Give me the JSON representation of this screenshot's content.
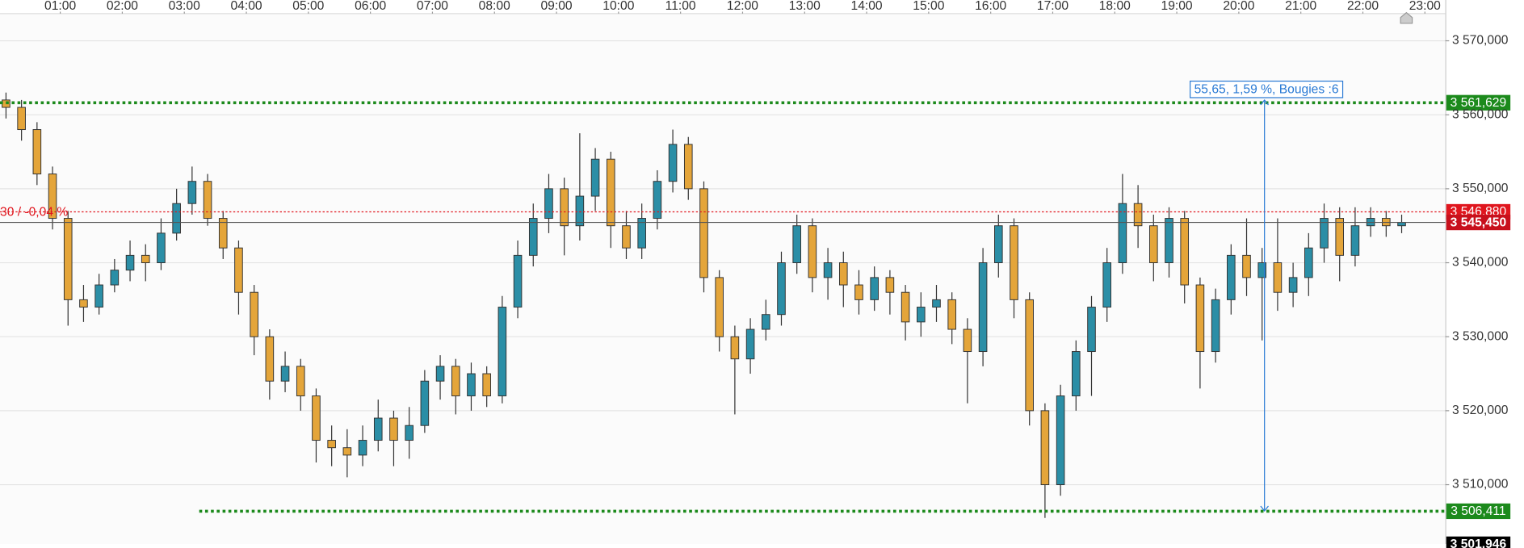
{
  "chart_data": {
    "type": "candlestick",
    "x": [
      "00:00",
      "00:15",
      "00:30",
      "00:45",
      "01:00",
      "01:15",
      "01:30",
      "01:45",
      "02:00",
      "02:15",
      "02:30",
      "02:45",
      "03:00",
      "03:15",
      "03:30",
      "03:45",
      "04:00",
      "04:15",
      "04:30",
      "04:45",
      "05:00",
      "05:15",
      "05:30",
      "05:45",
      "06:00",
      "06:15",
      "06:30",
      "06:45",
      "07:00",
      "07:15",
      "07:30",
      "07:45",
      "08:00",
      "08:15",
      "08:30",
      "08:45",
      "09:00",
      "09:15",
      "09:30",
      "09:45",
      "10:00",
      "10:15",
      "10:30",
      "10:45",
      "11:00",
      "11:15",
      "11:30",
      "11:45",
      "12:00",
      "12:15",
      "12:30",
      "12:45",
      "13:00",
      "13:15",
      "13:30",
      "13:45",
      "14:00",
      "14:15",
      "14:30",
      "14:45",
      "15:00",
      "15:15",
      "15:30",
      "15:45",
      "16:00",
      "16:15",
      "16:30",
      "16:45",
      "17:00",
      "17:15",
      "17:30",
      "17:45",
      "18:00",
      "18:15",
      "18:30",
      "18:45",
      "19:00",
      "19:15",
      "19:30",
      "19:45",
      "20:00",
      "20:15",
      "20:30",
      "20:45",
      "21:00",
      "21:15",
      "21:30",
      "21:45",
      "22:00",
      "22:15",
      "22:30"
    ],
    "open": [
      3562,
      3561,
      3558,
      3552,
      3546,
      3535,
      3534,
      3537,
      3539,
      3541,
      3540,
      3544,
      3548,
      3551,
      3546,
      3542,
      3536,
      3530,
      3524,
      3526,
      3522,
      3516,
      3515,
      3514,
      3516,
      3519,
      3516,
      3518,
      3524,
      3526,
      3522,
      3525,
      3522,
      3534,
      3541,
      3546,
      3550,
      3545,
      3549,
      3554,
      3545,
      3542,
      3546,
      3551,
      3556,
      3550,
      3538,
      3530,
      3527,
      3531,
      3533,
      3540,
      3545,
      3538,
      3540,
      3537,
      3535,
      3538,
      3536,
      3532,
      3534,
      3535,
      3531,
      3528,
      3540,
      3545,
      3535,
      3520,
      3510,
      3522,
      3528,
      3534,
      3540,
      3548,
      3545,
      3540,
      3546,
      3537,
      3528,
      3535,
      3541,
      3538,
      3540,
      3536,
      3538,
      3542,
      3546,
      3541,
      3545,
      3546,
      3545
    ],
    "high": [
      3563,
      3562,
      3559,
      3553,
      3547,
      3537,
      3538.5,
      3540.5,
      3543,
      3542.5,
      3546,
      3550,
      3553,
      3552,
      3547,
      3543,
      3537,
      3531,
      3528,
      3527,
      3523,
      3518,
      3517.5,
      3518,
      3521.5,
      3520,
      3520.5,
      3525.5,
      3527.5,
      3527,
      3526.5,
      3526,
      3535.5,
      3543,
      3548,
      3552,
      3551.5,
      3557.5,
      3555.5,
      3555,
      3547,
      3548,
      3552.5,
      3558,
      3557,
      3551,
      3539,
      3531.5,
      3532.5,
      3535,
      3541.5,
      3546.5,
      3546,
      3542,
      3541.5,
      3539,
      3539.5,
      3539,
      3537,
      3536,
      3537,
      3536,
      3532.5,
      3542,
      3546.5,
      3546,
      3536,
      3521,
      3523.5,
      3529.5,
      3535.5,
      3542,
      3552,
      3550.5,
      3546.5,
      3547.5,
      3547,
      3538,
      3536.5,
      3542.5,
      3546,
      3542,
      3546,
      3540,
      3544,
      3548,
      3547.5,
      3547.5,
      3547.5,
      3547,
      3546.5
    ],
    "low": [
      3559.5,
      3556.5,
      3550.5,
      3544.5,
      3531.5,
      3532,
      3533,
      3536,
      3537.5,
      3537.5,
      3539,
      3543,
      3546.5,
      3545,
      3540.5,
      3533,
      3527.5,
      3521.5,
      3522.5,
      3520,
      3513,
      3512.5,
      3511,
      3512.5,
      3514.5,
      3512.5,
      3513.5,
      3517,
      3521.5,
      3519.5,
      3520,
      3520.5,
      3521,
      3532.5,
      3539.5,
      3544,
      3541,
      3543,
      3547,
      3542,
      3540.5,
      3540.5,
      3544.5,
      3549.5,
      3548.5,
      3536,
      3528,
      3519.5,
      3525,
      3529.5,
      3531.5,
      3538.5,
      3536,
      3535,
      3534,
      3533,
      3533.5,
      3533,
      3529.5,
      3530,
      3532,
      3529,
      3521,
      3526,
      3538,
      3532.5,
      3518,
      3505.5,
      3508.5,
      3520,
      3522,
      3532,
      3538.5,
      3542,
      3537.5,
      3538,
      3534.5,
      3523,
      3526.5,
      3533,
      3535.5,
      3529.5,
      3533.5,
      3534,
      3535.5,
      3540,
      3537.5,
      3539.5,
      3543.5,
      3543.5,
      3544
    ],
    "close": [
      3561,
      3558,
      3552,
      3546,
      3535,
      3534,
      3537,
      3539,
      3541,
      3540,
      3544,
      3548,
      3551,
      3546,
      3542,
      3536,
      3530,
      3524,
      3526,
      3522,
      3516,
      3515,
      3514,
      3516,
      3519,
      3516,
      3518,
      3524,
      3526,
      3522,
      3525,
      3522,
      3534,
      3541,
      3546,
      3550,
      3545,
      3549,
      3554,
      3545,
      3542,
      3546,
      3551,
      3556,
      3550,
      3538,
      3530,
      3527,
      3531,
      3533,
      3540,
      3545,
      3538,
      3540,
      3537,
      3535,
      3538,
      3536,
      3532,
      3534,
      3535,
      3531,
      3528,
      3540,
      3545,
      3535,
      3520,
      3510,
      3522,
      3528,
      3534,
      3540,
      3548,
      3545,
      3540,
      3546,
      3537,
      3528,
      3535,
      3541,
      3538,
      3540,
      3536,
      3538,
      3542,
      3546,
      3541,
      3545,
      3546,
      3545,
      3545.45
    ],
    "up_color": "#2b8ea6",
    "down_color": "#e4a53a",
    "ylim": [
      3501.99,
      3575.51
    ],
    "yticks": [
      {
        "value": 3510,
        "label": "3 510,000"
      },
      {
        "value": 3520,
        "label": "3 520,000"
      },
      {
        "value": 3530,
        "label": "3 530,000"
      },
      {
        "value": 3540,
        "label": "3 540,000"
      },
      {
        "value": 3550,
        "label": "3 550,000"
      },
      {
        "value": 3560,
        "label": "3 560,000"
      },
      {
        "value": 3570,
        "label": "3 570,000"
      }
    ],
    "xticks": [
      "01:00",
      "02:00",
      "03:00",
      "04:00",
      "05:00",
      "06:00",
      "07:00",
      "08:00",
      "09:00",
      "10:00",
      "11:00",
      "12:00",
      "13:00",
      "14:00",
      "15:00",
      "16:00",
      "17:00",
      "18:00",
      "19:00",
      "20:00",
      "21:00",
      "22:00",
      "23:00"
    ],
    "grid": true,
    "levels": [
      {
        "value": 3561.629,
        "label": "3 561,629",
        "color": "#1c8a1c",
        "line": "dotted"
      },
      {
        "value": 3506.411,
        "label": "3 506,411",
        "color": "#1c8a1c",
        "line": "dotted"
      },
      {
        "value": 3546.88,
        "label": "3 546,880",
        "color": "#e0161e",
        "line": "thin-dotted"
      },
      {
        "value": 3545.45,
        "label": "3 545,450",
        "color": "#c8101c",
        "line": "solid"
      },
      {
        "value": 3501.946,
        "label": "3 501,946",
        "color": "#000000",
        "line": "none"
      }
    ],
    "change_label": "30 / -0,04 %",
    "measure_label": "55,65, 1,59 %, Bougies :6"
  }
}
